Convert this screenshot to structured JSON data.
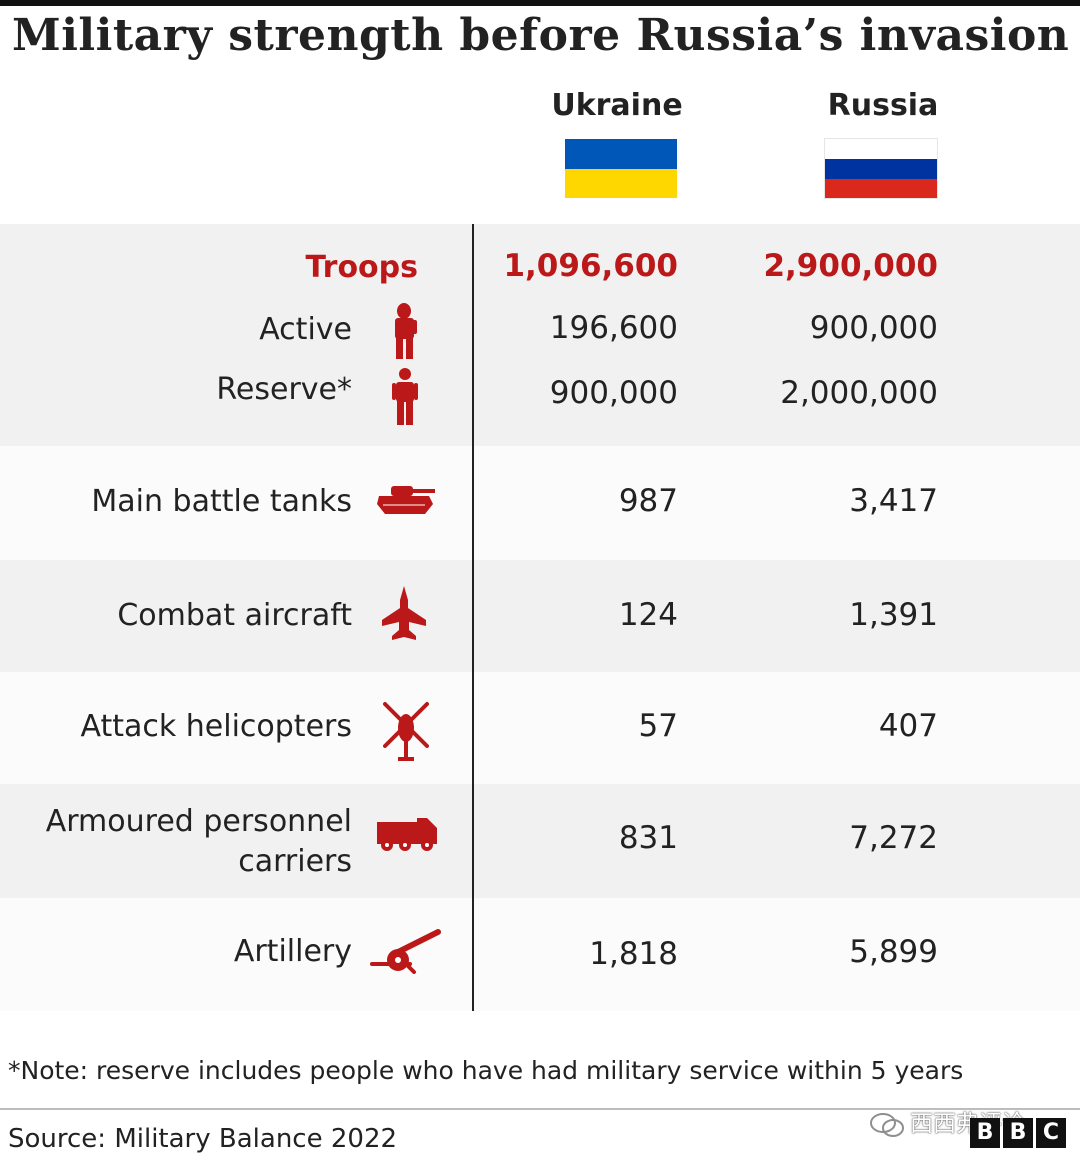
{
  "title": "Military strength before Russia’s invasion",
  "columns": {
    "ukraine": "Ukraine",
    "russia": "Russia"
  },
  "flags": {
    "ukraine": {
      "top_color": "#0057b7",
      "bottom_color": "#ffd700"
    },
    "russia": {
      "top_color": "#ffffff",
      "middle_color": "#0032a0",
      "bottom_color": "#da291c"
    }
  },
  "colors": {
    "accent": "#bb1919",
    "band_grey": "#f1f1f1",
    "band_white": "#fbfbfb"
  },
  "chart_data": {
    "type": "table",
    "title": "Military strength before Russia’s invasion",
    "columns": [
      "Ukraine",
      "Russia"
    ],
    "rows": [
      {
        "label": "Troops",
        "ukraine": "1,096,600",
        "russia": "2,900,000",
        "highlight": true
      },
      {
        "label": "Active",
        "ukraine": "196,600",
        "russia": "900,000",
        "icon": "soldier-icon"
      },
      {
        "label": "Reserve*",
        "ukraine": "900,000",
        "russia": "2,000,000",
        "icon": "person-icon"
      },
      {
        "label": "Main battle tanks",
        "ukraine": "987",
        "russia": "3,417",
        "icon": "tank-icon"
      },
      {
        "label": "Combat aircraft",
        "ukraine": "124",
        "russia": "1,391",
        "icon": "jet-icon"
      },
      {
        "label": "Attack helicopters",
        "ukraine": "57",
        "russia": "407",
        "icon": "helicopter-icon"
      },
      {
        "label_line1": "Armoured personnel",
        "label_line2": "carriers",
        "ukraine": "831",
        "russia": "7,272",
        "icon": "truck-icon"
      },
      {
        "label": "Artillery",
        "ukraine": "1,818",
        "russia": "5,899",
        "icon": "cannon-icon"
      }
    ]
  },
  "note": "*Note: reserve includes people who have had military service within 5 years",
  "source": "Source: Military Balance 2022",
  "watermark": {
    "text": "西西弗评论",
    "logo_letters": [
      "B",
      "B",
      "C"
    ]
  }
}
